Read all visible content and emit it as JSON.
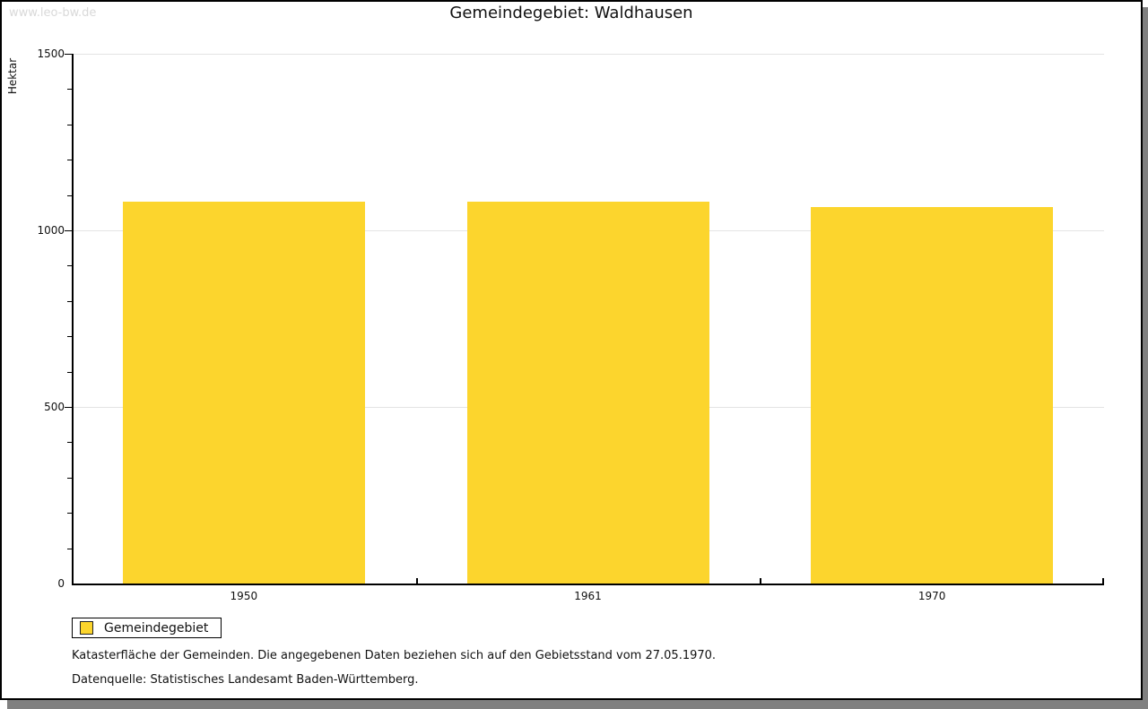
{
  "watermark": "www.leo-bw.de",
  "header": {
    "title": "Gemeindegebiet: Waldhausen"
  },
  "chart_data": {
    "type": "bar",
    "title": "Gemeindegebiet: Waldhausen",
    "categories": [
      "1950",
      "1961",
      "1970"
    ],
    "series": [
      {
        "name": "Gemeindegebiet",
        "values": [
          1081,
          1082,
          1066
        ]
      }
    ],
    "xlabel": "",
    "ylabel": "Hektar",
    "ylim": [
      0,
      1500
    ],
    "ytick_major": 500,
    "ytick_minor": 100,
    "grid": "horizontal-major",
    "legend_position": "bottom-left",
    "bar_color": "#FCD52D"
  },
  "legend": {
    "label": "Gemeindegebiet",
    "swatch_color": "#FCD52D"
  },
  "footer": {
    "line1": "Katasterfläche der Gemeinden. Die angegebenen Daten beziehen sich auf den Gebietsstand vom 27.05.1970.",
    "line2": "Datenquelle: Statistisches Landesamt Baden-Württemberg."
  },
  "colors": {
    "bar": "#FCD52D",
    "gridline": "#e4e4e4",
    "axis": "#000000",
    "watermark_text": "#d9d9d9",
    "panel_shadow": "#808080"
  }
}
